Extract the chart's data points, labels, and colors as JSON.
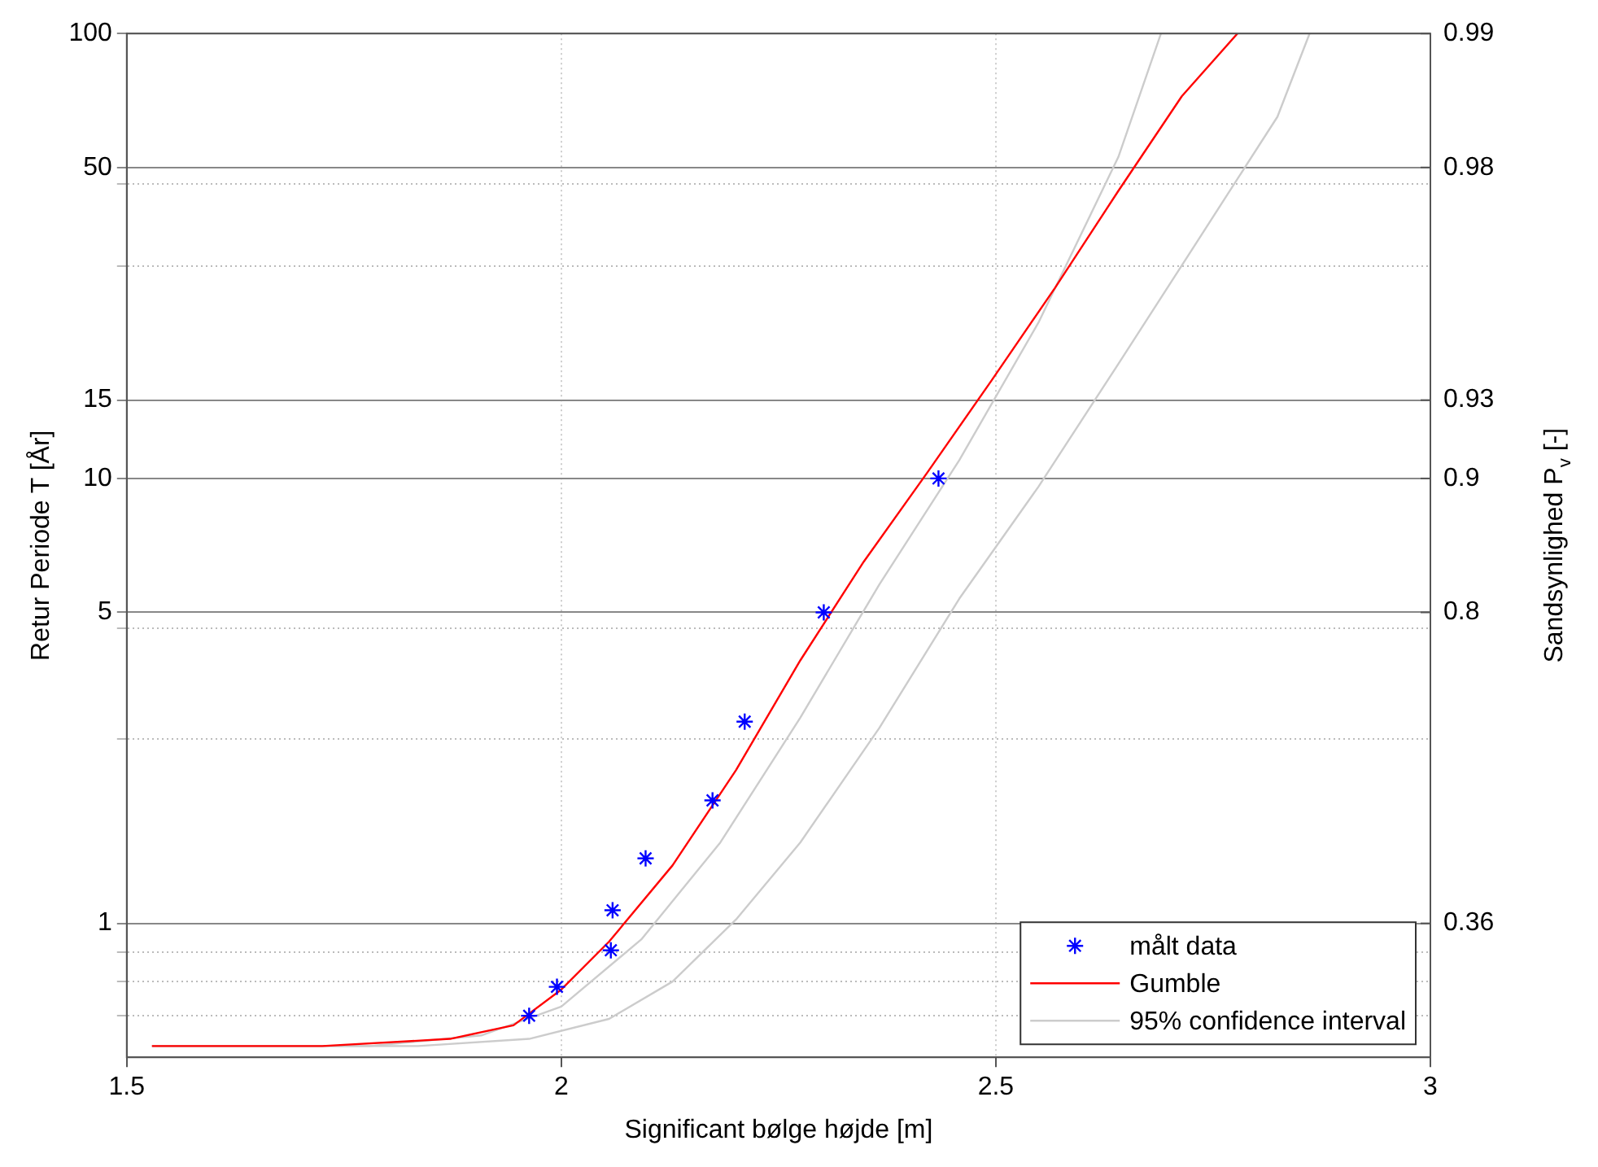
{
  "chart_data": {
    "type": "line",
    "xlabel": "Significant bølge højde [m]",
    "ylabel": "Retur Periode T [År]",
    "y2label": "Sandsynlighed P$_{v}$ [-]",
    "log": "y",
    "xlim": [
      1.5,
      3
    ],
    "xticks": [
      1.5,
      2,
      2.5,
      3
    ],
    "ylim": [
      0.5,
      100
    ],
    "yticks": [
      {
        "value": 0.62,
        "label": null
      },
      {
        "value": 0.74,
        "label": null
      },
      {
        "value": 0.86,
        "label": null
      },
      1,
      {
        "value": 2.6,
        "label": null
      },
      {
        "value": 4.6,
        "label": null
      },
      5,
      10,
      15,
      {
        "value": 30,
        "label": null
      },
      {
        "value": 46,
        "label": null
      },
      50,
      100
    ],
    "annotations": [
      "0.99",
      "0.98",
      "0.93",
      "0.9",
      "0.8",
      "0.36"
    ],
    "grid": true,
    "legend": "bottom right",
    "series": [
      {
        "type": "scatter",
        "name": "målt data",
        "color": "#0000ff",
        "marker": "cross",
        "x": [
          1.963,
          1.995,
          2.057,
          2.059,
          2.097,
          2.174,
          2.211,
          2.302,
          2.434
        ],
        "values": [
          0.62,
          0.72,
          0.87,
          1.07,
          1.4,
          1.89,
          2.84,
          5,
          10
        ]
      },
      {
        "type": "line",
        "name": "Gumble",
        "color": "#ff0000",
        "marker": "none",
        "x": [
          1.529,
          1.725,
          1.872,
          1.945,
          2.0,
          2.055,
          2.128,
          2.201,
          2.275,
          2.348,
          2.421,
          2.495,
          2.568,
          2.641,
          2.714,
          2.778
        ],
        "values": [
          0.53,
          0.53,
          0.55,
          0.59,
          0.71,
          0.91,
          1.35,
          2.21,
          3.9,
          6.5,
          10.3,
          16.6,
          26.8,
          44.3,
          72.3,
          100
        ]
      },
      {
        "type": "line",
        "name": "95% confidence interval",
        "color": "#cccccc",
        "marker": "none",
        "x": [
          1.529,
          1.78,
          1.908,
          2.0,
          2.092,
          2.183,
          2.275,
          2.366,
          2.458,
          2.549,
          2.641,
          2.69
        ],
        "values": [
          0.53,
          0.53,
          0.56,
          0.65,
          0.92,
          1.52,
          2.9,
          5.78,
          11,
          22.4,
          52.8,
          100
        ]
      },
      {
        "type": "line",
        "color": "#cccccc",
        "marker": "none",
        "x": [
          1.529,
          1.835,
          1.963,
          2.055,
          2.128,
          2.201,
          2.275,
          2.366,
          2.458,
          2.549,
          2.641,
          2.733,
          2.824,
          2.861
        ],
        "values": [
          0.53,
          0.53,
          0.55,
          0.61,
          0.74,
          1.02,
          1.52,
          2.75,
          5.37,
          9.58,
          18.1,
          34.4,
          65,
          100
        ]
      }
    ]
  }
}
